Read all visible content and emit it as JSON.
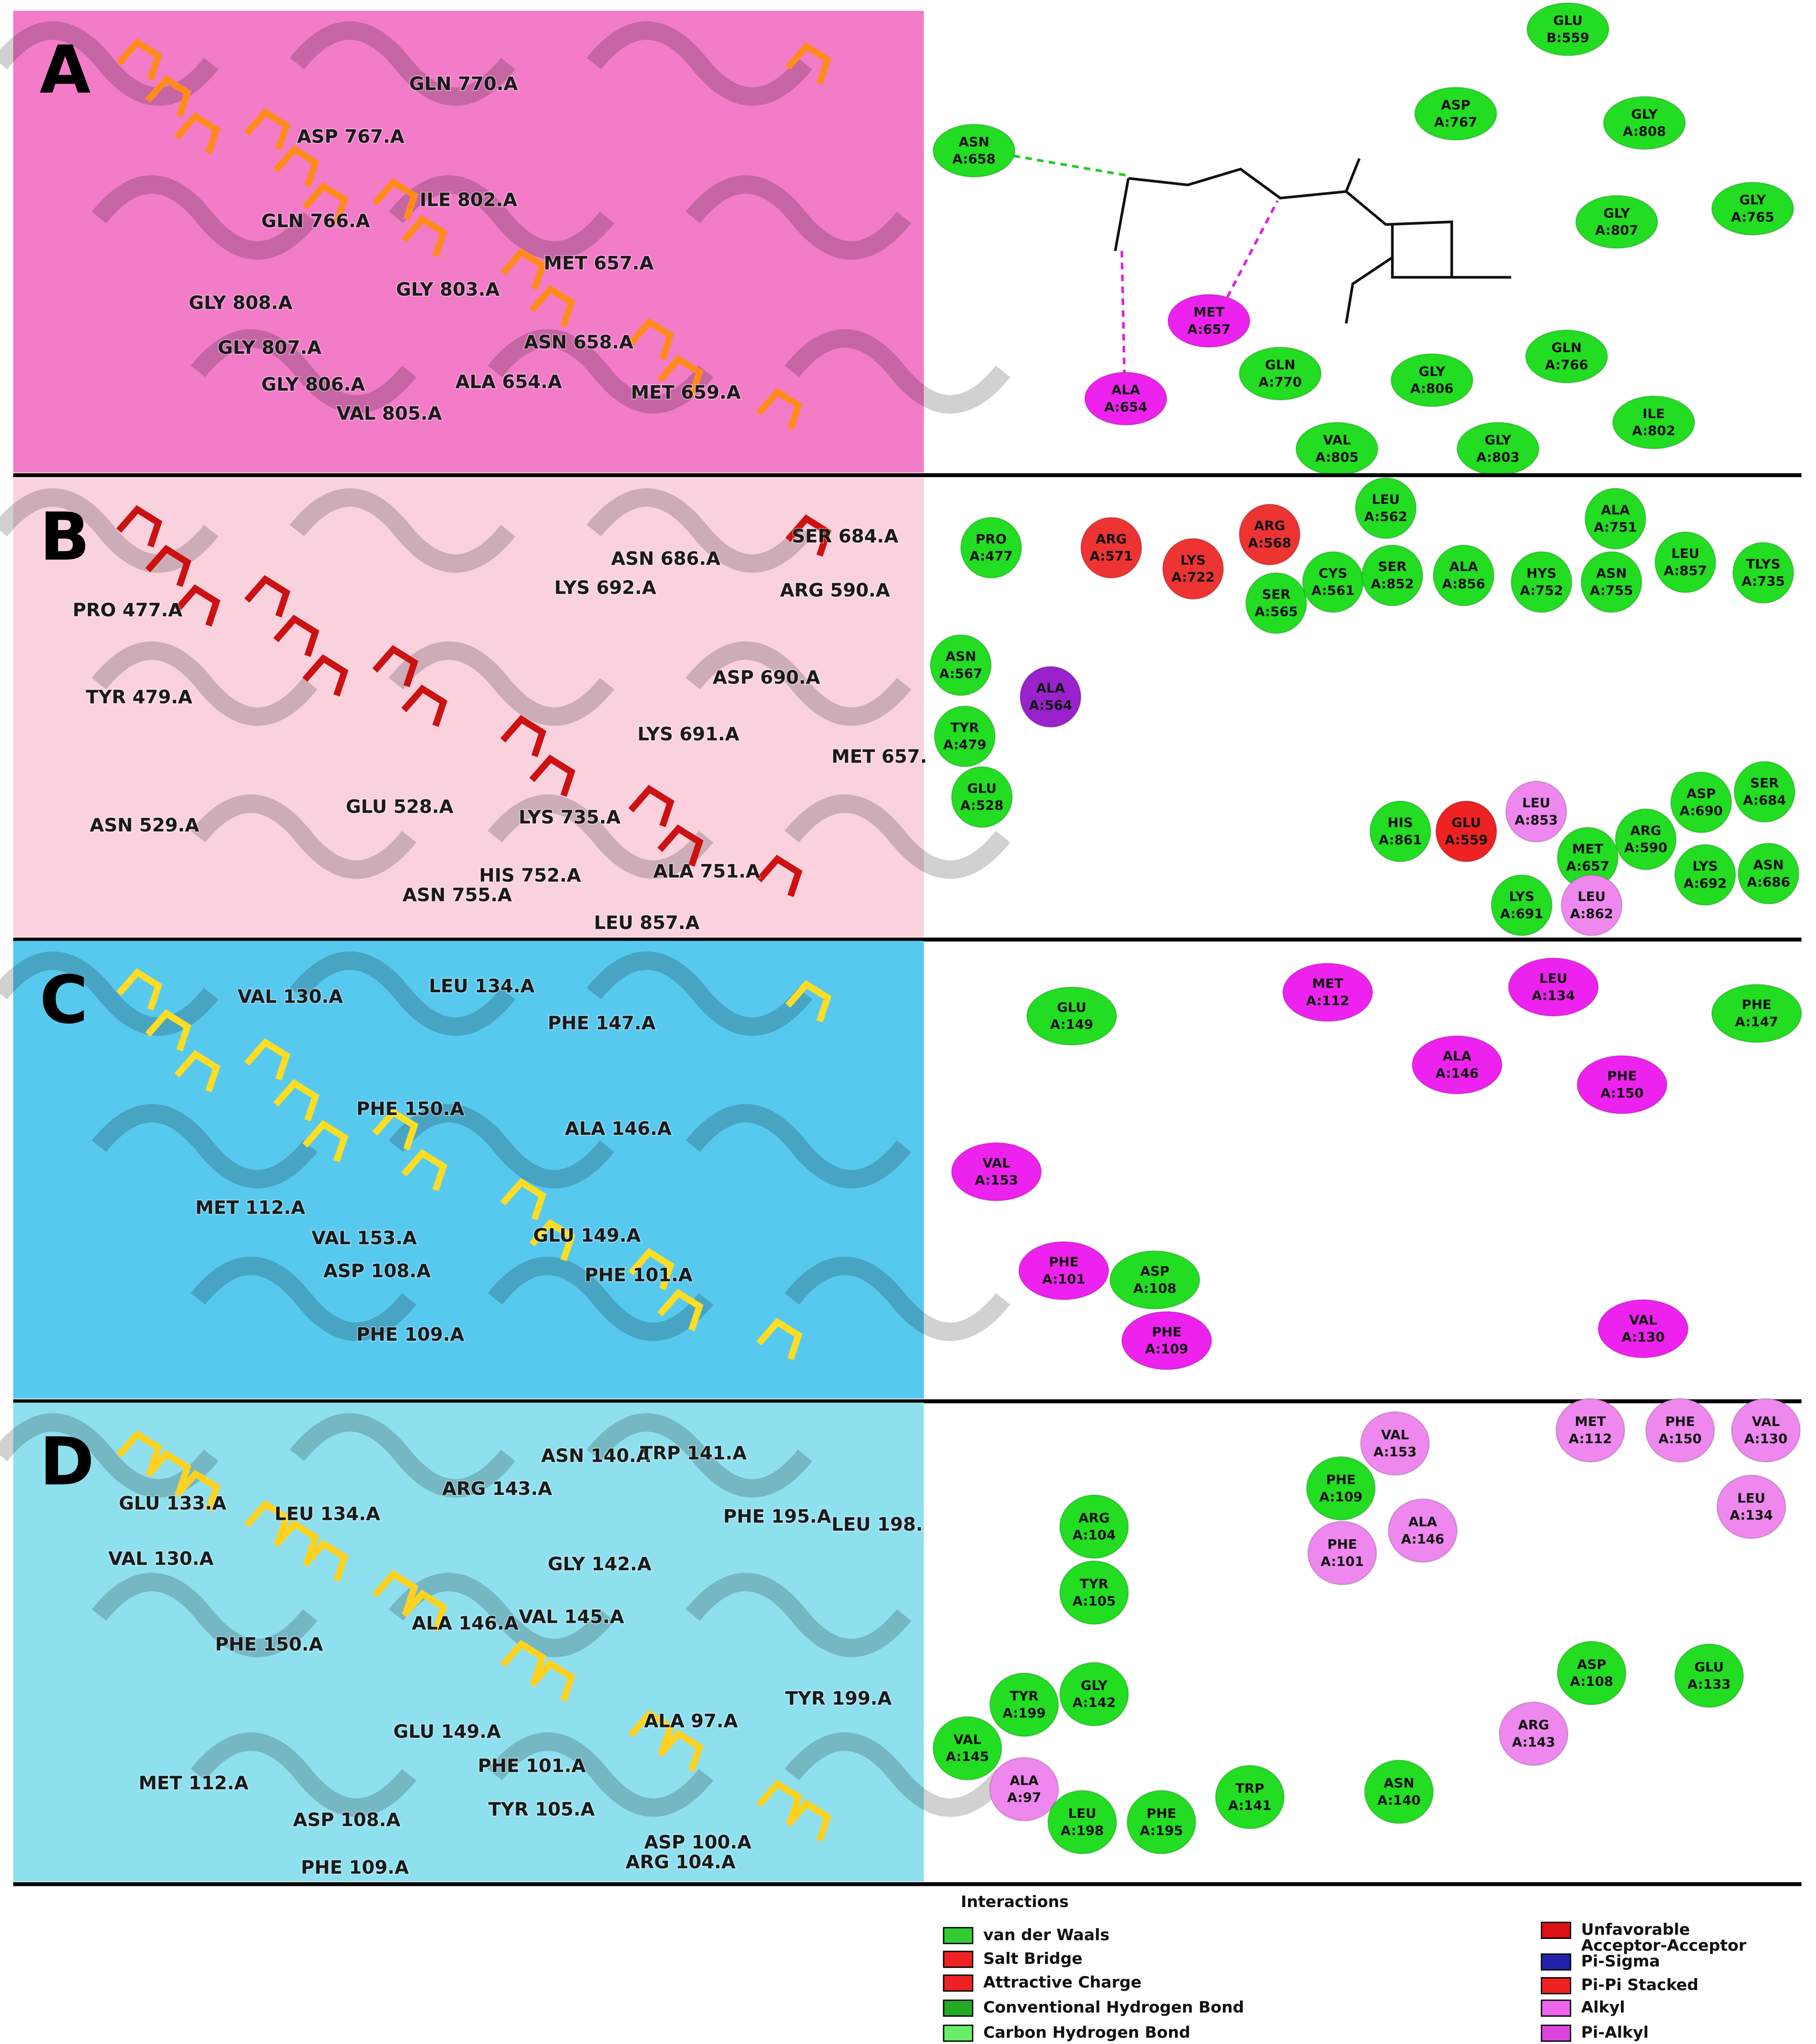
{
  "panels": [
    {
      "letter": "A",
      "residues_3d": [
        "GLN 770.A",
        "ASP 767.A",
        "ILE 802.A",
        "GLN 766.A",
        "MET 657.A",
        "GLY 803.A",
        "GLY 808.A",
        "GLY 807.A",
        "ASN 658.A",
        "ALA 654.A",
        "GLY 806.A",
        "MET 659.A",
        "VAL 805.A"
      ],
      "interactions": [
        {
          "name": "GLU",
          "id": "B:559",
          "color": "#22dd22"
        },
        {
          "name": "ASP",
          "id": "A:767",
          "color": "#22dd22"
        },
        {
          "name": "GLY",
          "id": "A:808",
          "color": "#22dd22"
        },
        {
          "name": "ASN",
          "id": "A:658",
          "color": "#22dd22"
        },
        {
          "name": "GLY",
          "id": "A:807",
          "color": "#22dd22"
        },
        {
          "name": "GLY",
          "id": "A:765",
          "color": "#22dd22"
        },
        {
          "name": "MET",
          "id": "A:657",
          "color": "#ee22ee"
        },
        {
          "name": "GLN",
          "id": "A:770",
          "color": "#22dd22"
        },
        {
          "name": "GLY",
          "id": "A:806",
          "color": "#22dd22"
        },
        {
          "name": "GLN",
          "id": "A:766",
          "color": "#22dd22"
        },
        {
          "name": "ALA",
          "id": "A:654",
          "color": "#ee22ee"
        },
        {
          "name": "VAL",
          "id": "A:805",
          "color": "#22dd22"
        },
        {
          "name": "GLY",
          "id": "A:803",
          "color": "#22dd22"
        },
        {
          "name": "ILE",
          "id": "A:802",
          "color": "#22dd22"
        }
      ]
    },
    {
      "letter": "B",
      "residues_3d": [
        "PRO 477.A",
        "TYR 479.A",
        "ASN 529.A",
        "GLU 528.A",
        "ASN 686.A",
        "SER 684.A",
        "LYS 692.A",
        "ARG 590.A",
        "ASP 690.A",
        "LYS 691.A",
        "MET 657.",
        "LYS 735.A",
        "HIS 752.A",
        "ALA 751.A",
        "ASN 755.A",
        "LEU 857.A"
      ],
      "interactions": [
        {
          "name": "PRO",
          "id": "A:477",
          "color": "#22dd22"
        },
        {
          "name": "ARG",
          "id": "A:571",
          "color": "#ee3333"
        },
        {
          "name": "LYS",
          "id": "A:722",
          "color": "#ee3333"
        },
        {
          "name": "ARG",
          "id": "A:568",
          "color": "#ee3333"
        },
        {
          "name": "LEU",
          "id": "A:562",
          "color": "#22dd22"
        },
        {
          "name": "ALA",
          "id": "A:751",
          "color": "#22dd22"
        },
        {
          "name": "SER",
          "id": "A:565",
          "color": "#22dd22"
        },
        {
          "name": "CYS",
          "id": "A:561",
          "color": "#22dd22"
        },
        {
          "name": "SER",
          "id": "A:852",
          "color": "#22dd22"
        },
        {
          "name": "ALA",
          "id": "A:856",
          "color": "#22dd22"
        },
        {
          "name": "HYS",
          "id": "A:752",
          "color": "#22dd22"
        },
        {
          "name": "ASN",
          "id": "A:755",
          "color": "#22dd22"
        },
        {
          "name": "LEU",
          "id": "A:857",
          "color": "#22dd22"
        },
        {
          "name": "TLYS",
          "id": "A:735",
          "color": "#22dd22"
        },
        {
          "name": "ASN",
          "id": "A:567",
          "color": "#22dd22"
        },
        {
          "name": "ALA",
          "id": "A:564",
          "color": "#9922cc"
        },
        {
          "name": "TYR",
          "id": "A:479",
          "color": "#22dd22"
        },
        {
          "name": "GLU",
          "id": "A:528",
          "color": "#22dd22"
        },
        {
          "name": "HIS",
          "id": "A:861",
          "color": "#22dd22"
        },
        {
          "name": "GLU",
          "id": "A:559",
          "color": "#ee2222"
        },
        {
          "name": "LEU",
          "id": "A:853",
          "color": "#ee88ee"
        },
        {
          "name": "MET",
          "id": "A:657",
          "color": "#22dd22"
        },
        {
          "name": "ARG",
          "id": "A:590",
          "color": "#22dd22"
        },
        {
          "name": "ASP",
          "id": "A:690",
          "color": "#22dd22"
        },
        {
          "name": "SER",
          "id": "A:684",
          "color": "#22dd22"
        },
        {
          "name": "LYS",
          "id": "A:691",
          "color": "#22dd22"
        },
        {
          "name": "LEU",
          "id": "A:862",
          "color": "#ee88ee"
        },
        {
          "name": "LYS",
          "id": "A:692",
          "color": "#22dd22"
        },
        {
          "name": "ASN",
          "id": "A:686",
          "color": "#22dd22"
        }
      ]
    },
    {
      "letter": "C",
      "residues_3d": [
        "VAL 130.A",
        "LEU 134.A",
        "PHE 147.A",
        "PHE 150.A",
        "ALA 146.A",
        "MET 112.A",
        "VAL 153.A",
        "GLU 149.A",
        "ASP 108.A",
        "PHE 101.A",
        "PHE 109.A"
      ],
      "interactions": [
        {
          "name": "GLU",
          "id": "A:149",
          "color": "#22dd22"
        },
        {
          "name": "MET",
          "id": "A:112",
          "color": "#ee22ee"
        },
        {
          "name": "LEU",
          "id": "A:134",
          "color": "#ee22ee"
        },
        {
          "name": "PHE",
          "id": "A:147",
          "color": "#22dd22"
        },
        {
          "name": "ALA",
          "id": "A:146",
          "color": "#ee22ee"
        },
        {
          "name": "PHE",
          "id": "A:150",
          "color": "#ee22ee"
        },
        {
          "name": "VAL",
          "id": "A:153",
          "color": "#ee22ee"
        },
        {
          "name": "PHE",
          "id": "A:101",
          "color": "#ee22ee"
        },
        {
          "name": "ASP",
          "id": "A:108",
          "color": "#22dd22"
        },
        {
          "name": "PHE",
          "id": "A:109",
          "color": "#ee22ee"
        },
        {
          "name": "VAL",
          "id": "A:130",
          "color": "#ee22ee"
        }
      ]
    },
    {
      "letter": "D",
      "residues_3d": [
        "ASN 140.A",
        "TRP 141.A",
        "GLU 133.A",
        "LEU 134.A",
        "ARG 143.A",
        "PHE 195.A",
        "LEU 198.",
        "VAL 130.A",
        "GLY 142.A",
        "PHE 150.A",
        "ALA 146.A",
        "VAL 145.A",
        "TYR 199.A",
        "ALA 97.A",
        "GLU 149.A",
        "PHE 101.A",
        "MET 112.A",
        "TYR 105.A",
        "ASP 108.A",
        "ASP 100.A",
        "ARG 104.A",
        "PHE 109.A"
      ],
      "interactions": [
        {
          "name": "VAL",
          "id": "A:153",
          "color": "#ee88ee"
        },
        {
          "name": "MET",
          "id": "A:112",
          "color": "#ee88ee"
        },
        {
          "name": "PHE",
          "id": "A:150",
          "color": "#ee88ee"
        },
        {
          "name": "VAL",
          "id": "A:130",
          "color": "#ee88ee"
        },
        {
          "name": "PHE",
          "id": "A:109",
          "color": "#22dd22"
        },
        {
          "name": "LEU",
          "id": "A:134",
          "color": "#ee88ee"
        },
        {
          "name": "ARG",
          "id": "A:104",
          "color": "#22dd22"
        },
        {
          "name": "ALA",
          "id": "A:146",
          "color": "#ee88ee"
        },
        {
          "name": "PHE",
          "id": "A:101",
          "color": "#ee88ee"
        },
        {
          "name": "TYR",
          "id": "A:105",
          "color": "#22dd22"
        },
        {
          "name": "ASP",
          "id": "A:108",
          "color": "#22dd22"
        },
        {
          "name": "GLU",
          "id": "A:133",
          "color": "#22dd22"
        },
        {
          "name": "TYR",
          "id": "A:199",
          "color": "#22dd22"
        },
        {
          "name": "GLY",
          "id": "A:142",
          "color": "#22dd22"
        },
        {
          "name": "ARG",
          "id": "A:143",
          "color": "#ee88ee"
        },
        {
          "name": "VAL",
          "id": "A:145",
          "color": "#22dd22"
        },
        {
          "name": "ALA",
          "id": "A:97",
          "color": "#ee88ee"
        },
        {
          "name": "LEU",
          "id": "A:198",
          "color": "#22dd22"
        },
        {
          "name": "PHE",
          "id": "A:195",
          "color": "#22dd22"
        },
        {
          "name": "TRP",
          "id": "A:141",
          "color": "#22dd22"
        },
        {
          "name": "ASN",
          "id": "A:140",
          "color": "#22dd22"
        }
      ]
    }
  ],
  "legend": {
    "title": "Interactions",
    "items": [
      {
        "lines": [
          "van der Waals"
        ],
        "color": "#33cc33"
      },
      {
        "lines": [
          "Salt Bridge"
        ],
        "color": "#ee2222"
      },
      {
        "lines": [
          "Attractive Charge"
        ],
        "color": "#ee2222"
      },
      {
        "lines": [
          "Conventional Hydrogen Bond"
        ],
        "color": "#22aa22"
      },
      {
        "lines": [
          "Carbon Hydrogen Bond"
        ],
        "color": "#66ee66"
      },
      {
        "lines": [
          "Unfavorable",
          "Acceptor-Acceptor"
        ],
        "color": "#dd1111"
      },
      {
        "lines": [
          "Pi-Sigma"
        ],
        "color": "#2222aa"
      },
      {
        "lines": [
          "Pi-Pi Stacked"
        ],
        "color": "#ee2222"
      },
      {
        "lines": [
          "Alkyl"
        ],
        "color": "#ee66ee"
      },
      {
        "lines": [
          "Pi-Alkyl"
        ],
        "color": "#dd44dd"
      }
    ]
  }
}
